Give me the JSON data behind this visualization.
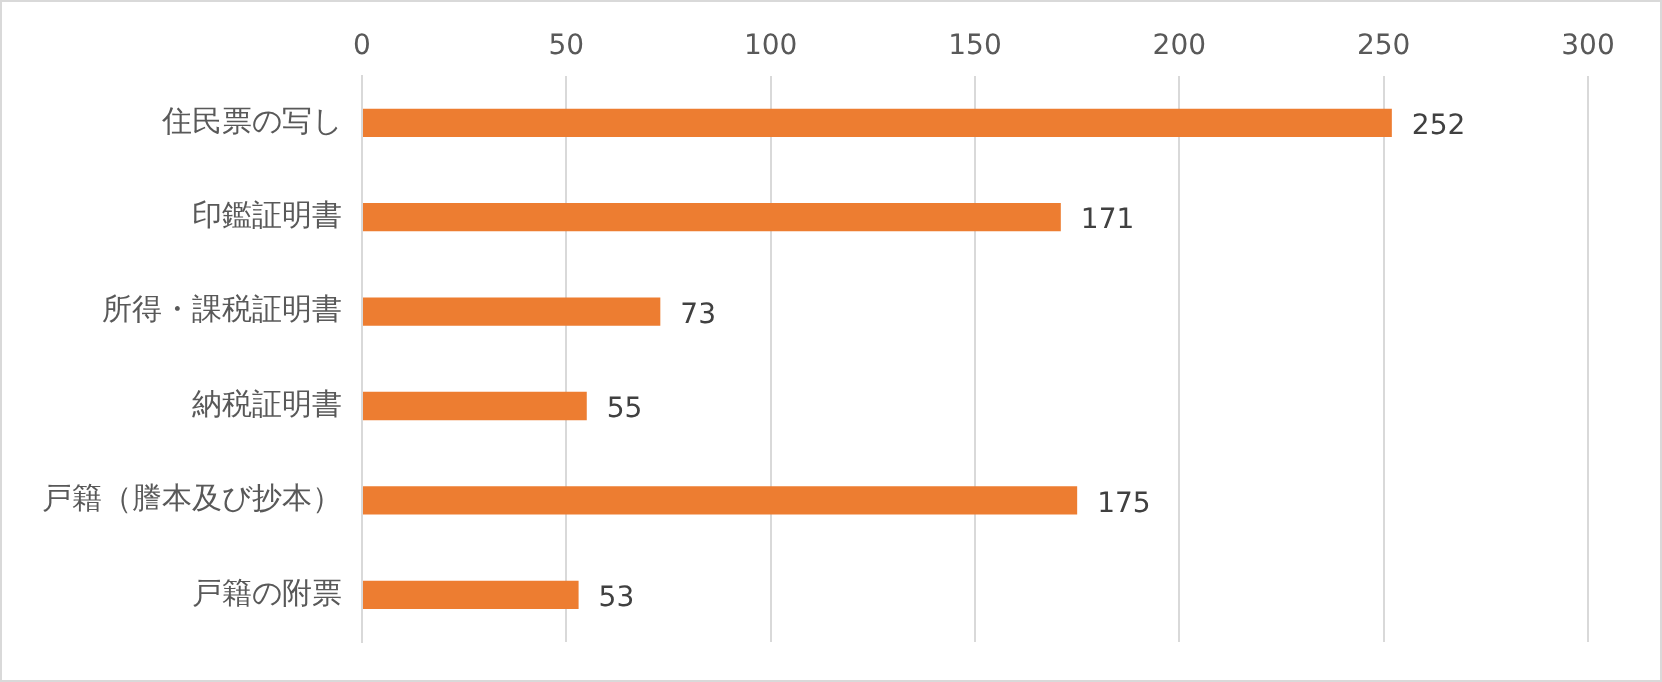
{
  "chart_data": {
    "type": "bar",
    "orientation": "horizontal",
    "categories": [
      "住民票の写し",
      "印鑑証明書",
      "所得・課税証明書",
      "納税証明書",
      "戸籍（謄本及び抄本）",
      "戸籍の附票"
    ],
    "values": [
      252,
      171,
      73,
      55,
      175,
      53
    ],
    "color": "#ed7d31",
    "xlim": [
      0,
      300
    ],
    "xticks": [
      0,
      50,
      100,
      150,
      200,
      250,
      300
    ],
    "grid": "x",
    "data_labels": true,
    "legend": false
  }
}
